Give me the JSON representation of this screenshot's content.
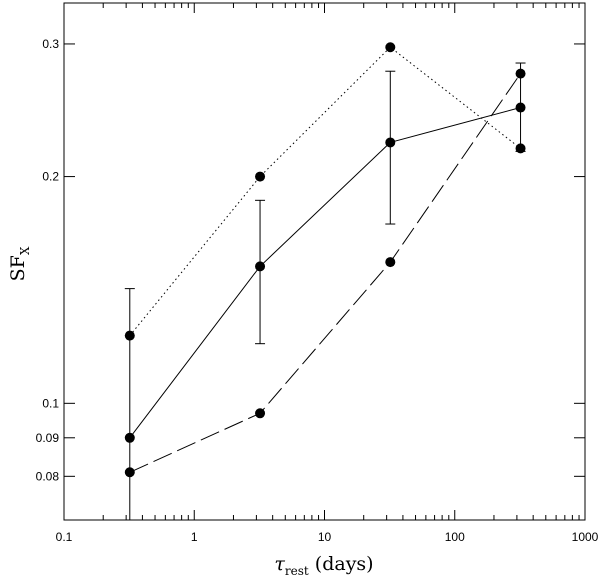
{
  "chart_data": {
    "type": "line",
    "title": "",
    "xlabel": {
      "symbol": "τ",
      "subscript": "rest",
      "suffix": " (days)"
    },
    "ylabel": {
      "main": "SF",
      "subscript": "X"
    },
    "xscale": "log",
    "yscale": "log",
    "xlim": [
      0.1,
      1000
    ],
    "ylim": [
      0.07,
      0.34
    ],
    "x_major_ticks": [
      0.1,
      1,
      10,
      100,
      1000
    ],
    "x_tick_labels": [
      "0.1",
      "1",
      "10",
      "100",
      "1000"
    ],
    "y_major_ticks": [
      0.08,
      0.09,
      0.1,
      0.2,
      0.3
    ],
    "y_tick_labels": [
      "0.08",
      "0.09",
      "0.1",
      "0.2",
      "0.3"
    ],
    "grid": false,
    "series": [
      {
        "style": "solid",
        "x": [
          0.32,
          3.2,
          32,
          320
        ],
        "y": [
          0.09,
          0.152,
          0.222,
          0.247
        ],
        "yerr_low": [
          0.066,
          0.12,
          0.173,
          0.216
        ],
        "yerr_high": [
          0.142,
          0.186,
          0.276,
          0.283
        ]
      },
      {
        "style": "dotted",
        "x": [
          0.32,
          3.2,
          32,
          320
        ],
        "y": [
          0.123,
          0.2,
          0.297,
          0.218
        ]
      },
      {
        "style": "dashed",
        "x": [
          0.32,
          3.2,
          32,
          320
        ],
        "y": [
          0.081,
          0.097,
          0.154,
          0.274
        ]
      }
    ]
  }
}
